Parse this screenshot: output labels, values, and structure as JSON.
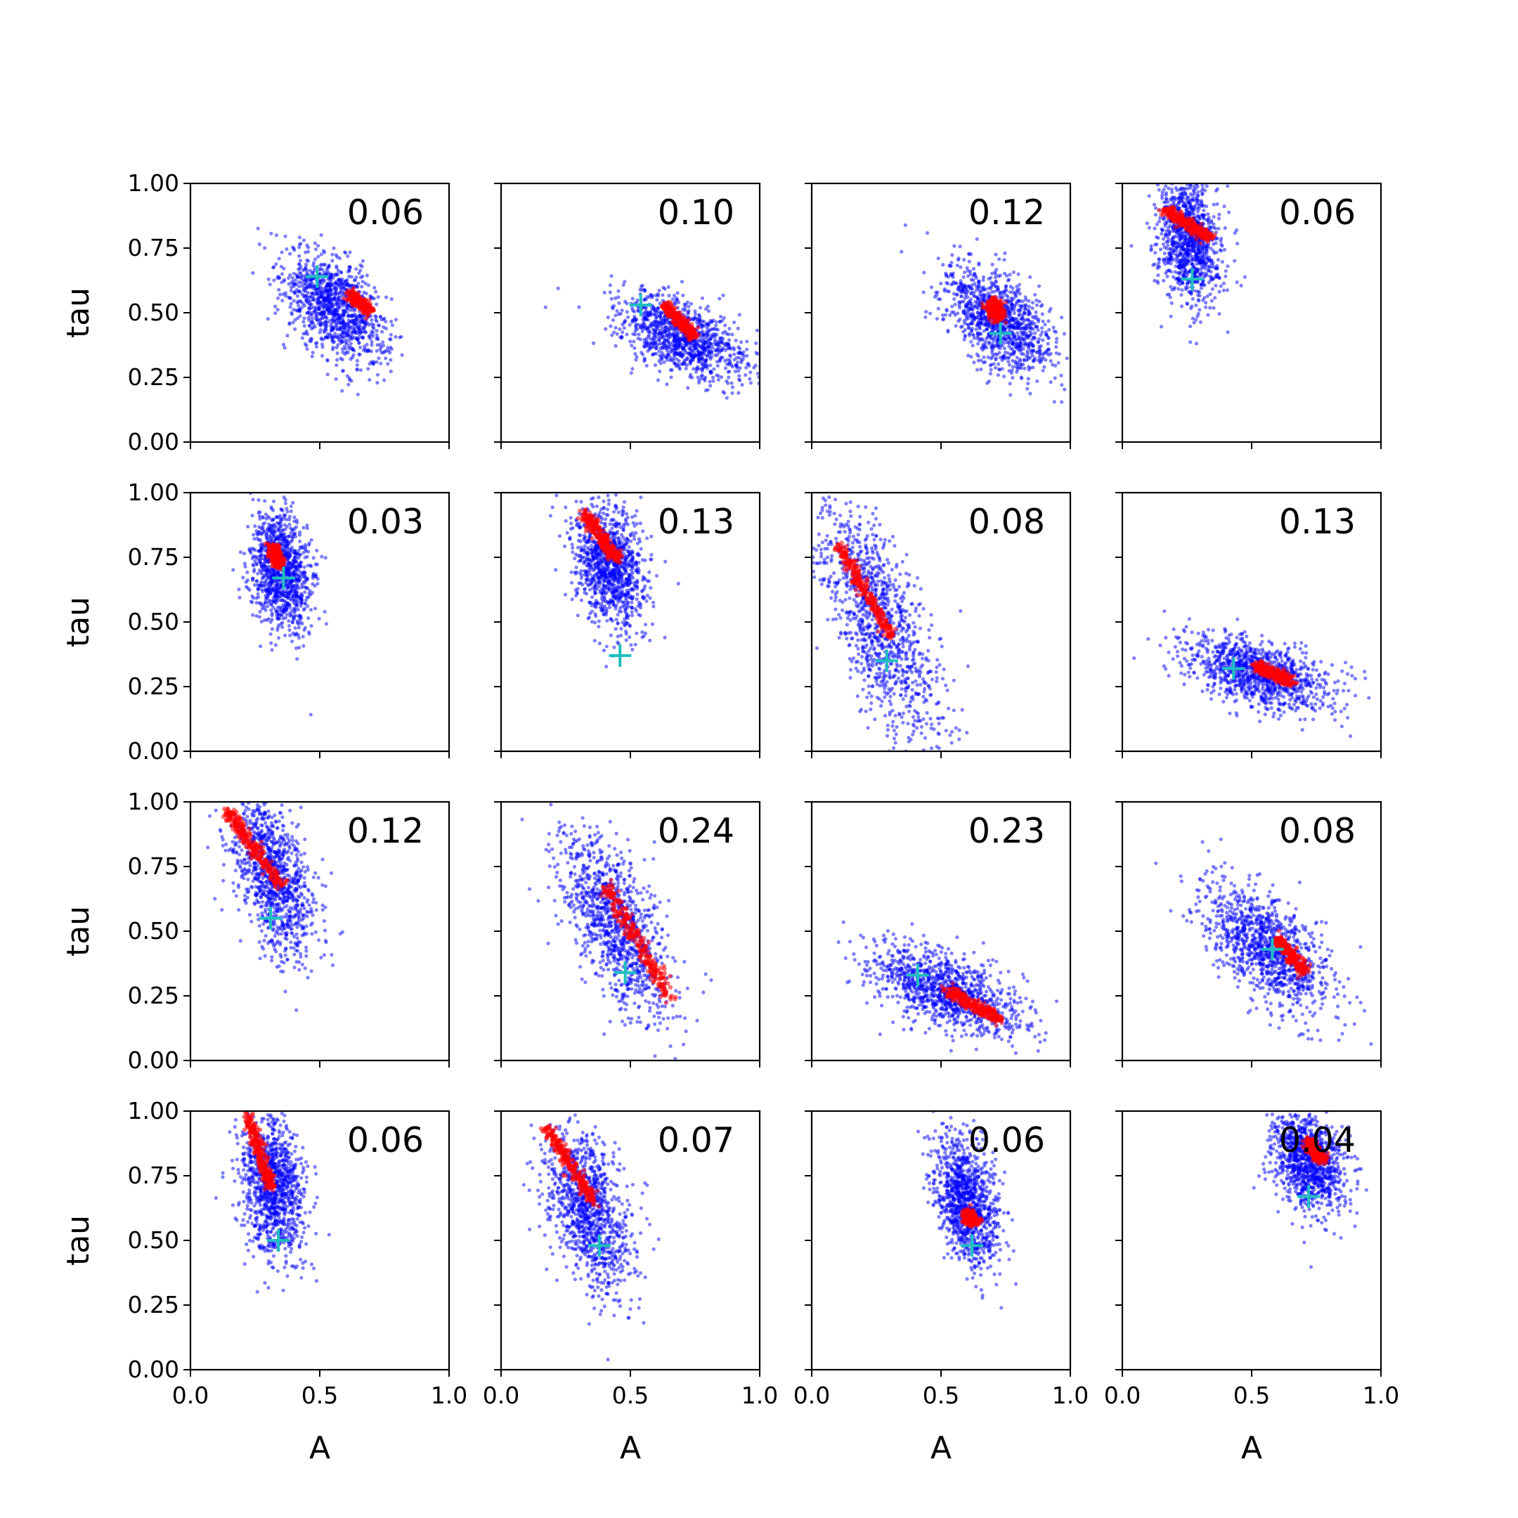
{
  "figure": {
    "xlabel": "A",
    "ylabel": "tau",
    "xticks": [
      "0.0",
      "0.5",
      "1.0"
    ],
    "yticks": [
      "0.00",
      "0.25",
      "0.50",
      "0.75",
      "1.00"
    ],
    "colors": {
      "samples": "#0000ff",
      "posterior": "#ff0000",
      "marker": "#1fbfbf"
    }
  },
  "chart_data": [
    {
      "type": "scatter",
      "panel": 1,
      "label": "0.06",
      "xlabel": "",
      "ylabel": "tau",
      "xlim": [
        0,
        1
      ],
      "ylim": [
        0,
        1
      ],
      "grid": false,
      "blue": {
        "center": [
          0.56,
          0.52
        ],
        "spread": [
          0.1,
          0.12
        ],
        "corr": -0.65,
        "trend": -0.6
      },
      "red": {
        "start": [
          0.62,
          0.57
        ],
        "end": [
          0.69,
          0.51
        ],
        "width": 0.018
      },
      "marker": [
        0.49,
        0.64
      ]
    },
    {
      "type": "scatter",
      "panel": 2,
      "label": "0.10",
      "xlabel": "",
      "ylabel": "",
      "xlim": [
        0,
        1
      ],
      "ylim": [
        0,
        1
      ],
      "grid": false,
      "blue": {
        "center": [
          0.7,
          0.4
        ],
        "spread": [
          0.12,
          0.09
        ],
        "corr": -0.6,
        "trend": -0.4
      },
      "red": {
        "start": [
          0.63,
          0.53
        ],
        "end": [
          0.75,
          0.41
        ],
        "width": 0.018
      },
      "marker": [
        0.54,
        0.53
      ]
    },
    {
      "type": "scatter",
      "panel": 3,
      "label": "0.12",
      "xlabel": "",
      "ylabel": "",
      "xlim": [
        0,
        1
      ],
      "ylim": [
        0,
        1
      ],
      "grid": false,
      "blue": {
        "center": [
          0.72,
          0.47
        ],
        "spread": [
          0.11,
          0.12
        ],
        "corr": -0.6,
        "trend": -0.7
      },
      "red": {
        "start": [
          0.7,
          0.54
        ],
        "end": [
          0.72,
          0.48
        ],
        "width": 0.025
      },
      "marker": [
        0.73,
        0.42
      ]
    },
    {
      "type": "scatter",
      "panel": 4,
      "label": "0.06",
      "xlabel": "",
      "ylabel": "",
      "xlim": [
        0,
        1
      ],
      "ylim": [
        0,
        1
      ],
      "grid": false,
      "blue": {
        "center": [
          0.26,
          0.78
        ],
        "spread": [
          0.06,
          0.16
        ],
        "corr": -0.2,
        "trend": -0.5
      },
      "red": {
        "start": [
          0.16,
          0.9
        ],
        "end": [
          0.34,
          0.79
        ],
        "width": 0.02
      },
      "marker": [
        0.27,
        0.63
      ]
    },
    {
      "type": "scatter",
      "panel": 5,
      "label": "0.03",
      "xlabel": "",
      "ylabel": "tau",
      "xlim": [
        0,
        1
      ],
      "ylim": [
        0,
        1
      ],
      "grid": false,
      "blue": {
        "center": [
          0.35,
          0.7
        ],
        "spread": [
          0.06,
          0.15
        ],
        "corr": -0.2,
        "trend": -0.5
      },
      "red": {
        "start": [
          0.32,
          0.79
        ],
        "end": [
          0.34,
          0.72
        ],
        "width": 0.02
      },
      "marker": [
        0.36,
        0.67
      ]
    },
    {
      "type": "scatter",
      "panel": 6,
      "label": "0.13",
      "xlabel": "",
      "ylabel": "",
      "xlim": [
        0,
        1
      ],
      "ylim": [
        0,
        1
      ],
      "grid": false,
      "blue": {
        "center": [
          0.42,
          0.72
        ],
        "spread": [
          0.07,
          0.15
        ],
        "corr": -0.3,
        "trend": -0.6
      },
      "red": {
        "start": [
          0.32,
          0.92
        ],
        "end": [
          0.45,
          0.74
        ],
        "width": 0.02
      },
      "marker": [
        0.46,
        0.37
      ]
    },
    {
      "type": "scatter",
      "panel": 7,
      "label": "0.08",
      "xlabel": "",
      "ylabel": "",
      "xlim": [
        0,
        1
      ],
      "ylim": [
        0,
        1
      ],
      "grid": false,
      "blue": {
        "center": [
          0.26,
          0.5
        ],
        "spread": [
          0.12,
          0.22
        ],
        "corr": -0.8,
        "trend": -1.6
      },
      "red": {
        "start": [
          0.1,
          0.8
        ],
        "end": [
          0.31,
          0.44
        ],
        "width": 0.02
      },
      "marker": [
        0.29,
        0.35
      ]
    },
    {
      "type": "scatter",
      "panel": 8,
      "label": "0.13",
      "xlabel": "",
      "ylabel": "",
      "xlim": [
        0,
        1
      ],
      "ylim": [
        0,
        1
      ],
      "grid": false,
      "blue": {
        "center": [
          0.52,
          0.3
        ],
        "spread": [
          0.14,
          0.08
        ],
        "corr": -0.5,
        "trend": -0.3
      },
      "red": {
        "start": [
          0.52,
          0.33
        ],
        "end": [
          0.65,
          0.27
        ],
        "width": 0.02
      },
      "marker": [
        0.43,
        0.32
      ]
    },
    {
      "type": "scatter",
      "panel": 9,
      "label": "0.12",
      "xlabel": "",
      "ylabel": "tau",
      "xlim": [
        0,
        1
      ],
      "ylim": [
        0,
        1
      ],
      "grid": false,
      "blue": {
        "center": [
          0.32,
          0.72
        ],
        "spread": [
          0.08,
          0.18
        ],
        "corr": -0.4,
        "trend": -1.2
      },
      "red": {
        "start": [
          0.14,
          0.97
        ],
        "end": [
          0.35,
          0.67
        ],
        "width": 0.02
      },
      "marker": [
        0.31,
        0.55
      ]
    },
    {
      "type": "scatter",
      "panel": 10,
      "label": "0.24",
      "xlabel": "",
      "ylabel": "",
      "xlim": [
        0,
        1
      ],
      "ylim": [
        0,
        1
      ],
      "grid": false,
      "blue": {
        "center": [
          0.45,
          0.52
        ],
        "spread": [
          0.1,
          0.18
        ],
        "corr": -0.85,
        "trend": -1.3
      },
      "red": {
        "start": [
          0.4,
          0.68
        ],
        "end": [
          0.65,
          0.25
        ],
        "width": 0.025
      },
      "marker": [
        0.48,
        0.34
      ]
    },
    {
      "type": "scatter",
      "panel": 11,
      "label": "0.23",
      "xlabel": "",
      "ylabel": "",
      "xlim": [
        0,
        1
      ],
      "ylim": [
        0,
        1
      ],
      "grid": false,
      "blue": {
        "center": [
          0.52,
          0.27
        ],
        "spread": [
          0.15,
          0.09
        ],
        "corr": -0.7,
        "trend": -0.4
      },
      "red": {
        "start": [
          0.52,
          0.27
        ],
        "end": [
          0.73,
          0.16
        ],
        "width": 0.02
      },
      "marker": [
        0.41,
        0.33
      ]
    },
    {
      "type": "scatter",
      "panel": 12,
      "label": "0.08",
      "xlabel": "",
      "ylabel": "",
      "xlim": [
        0,
        1
      ],
      "ylim": [
        0,
        1
      ],
      "grid": false,
      "blue": {
        "center": [
          0.56,
          0.44
        ],
        "spread": [
          0.12,
          0.13
        ],
        "corr": -0.6,
        "trend": -0.7
      },
      "red": {
        "start": [
          0.6,
          0.47
        ],
        "end": [
          0.7,
          0.35
        ],
        "width": 0.02
      },
      "marker": [
        0.58,
        0.43
      ]
    },
    {
      "type": "scatter",
      "panel": 13,
      "label": "0.06",
      "xlabel": "A",
      "ylabel": "tau",
      "xlim": [
        0,
        1
      ],
      "ylim": [
        0,
        1
      ],
      "grid": false,
      "blue": {
        "center": [
          0.32,
          0.7
        ],
        "spread": [
          0.06,
          0.17
        ],
        "corr": -0.2,
        "trend": -0.5
      },
      "red": {
        "start": [
          0.22,
          0.98
        ],
        "end": [
          0.31,
          0.71
        ],
        "width": 0.02
      },
      "marker": [
        0.34,
        0.5
      ]
    },
    {
      "type": "scatter",
      "panel": 14,
      "label": "0.07",
      "xlabel": "A",
      "ylabel": "",
      "xlim": [
        0,
        1
      ],
      "ylim": [
        0,
        1
      ],
      "grid": false,
      "blue": {
        "center": [
          0.34,
          0.62
        ],
        "spread": [
          0.08,
          0.18
        ],
        "corr": -0.4,
        "trend": -1.0
      },
      "red": {
        "start": [
          0.18,
          0.93
        ],
        "end": [
          0.36,
          0.65
        ],
        "width": 0.02
      },
      "marker": [
        0.38,
        0.48
      ]
    },
    {
      "type": "scatter",
      "panel": 15,
      "label": "0.06",
      "xlabel": "A",
      "ylabel": "",
      "xlim": [
        0,
        1
      ],
      "ylim": [
        0,
        1
      ],
      "grid": false,
      "blue": {
        "center": [
          0.6,
          0.65
        ],
        "spread": [
          0.06,
          0.15
        ],
        "corr": -0.3,
        "trend": -0.8
      },
      "red": {
        "start": [
          0.6,
          0.6
        ],
        "end": [
          0.63,
          0.57
        ],
        "width": 0.02
      },
      "marker": [
        0.62,
        0.48
      ]
    },
    {
      "type": "scatter",
      "panel": 16,
      "label": "0.04",
      "xlabel": "A",
      "ylabel": "",
      "xlim": [
        0,
        1
      ],
      "ylim": [
        0,
        1
      ],
      "grid": false,
      "blue": {
        "center": [
          0.72,
          0.8
        ],
        "spread": [
          0.07,
          0.12
        ],
        "corr": -0.3,
        "trend": -0.5
      },
      "red": {
        "start": [
          0.72,
          0.88
        ],
        "end": [
          0.77,
          0.81
        ],
        "width": 0.02
      },
      "marker": [
        0.72,
        0.67
      ]
    }
  ]
}
